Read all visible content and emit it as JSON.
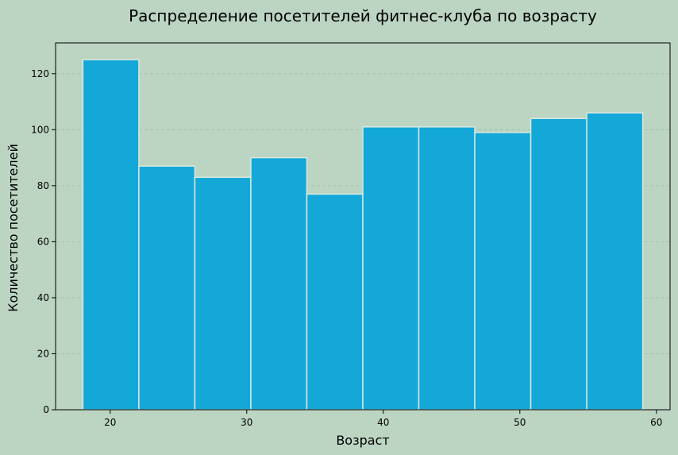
{
  "chart_data": {
    "type": "bar",
    "title": "Распределение посетителей фитнес-клуба по возрасту",
    "xlabel": "Возраст",
    "ylabel": "Количество посетителей",
    "bins": [
      [
        18.0,
        22.1
      ],
      [
        22.1,
        26.2
      ],
      [
        26.2,
        30.3
      ],
      [
        30.3,
        34.4
      ],
      [
        34.4,
        38.5
      ],
      [
        38.5,
        42.6
      ],
      [
        42.6,
        46.7
      ],
      [
        46.7,
        50.8
      ],
      [
        50.8,
        54.9
      ],
      [
        54.9,
        59.0
      ]
    ],
    "values": [
      125,
      87,
      83,
      90,
      77,
      101,
      101,
      99,
      104,
      106
    ],
    "xlim": [
      16,
      61
    ],
    "ylim": [
      0,
      131
    ],
    "xticks": [
      20,
      30,
      40,
      50,
      60
    ],
    "yticks": [
      0,
      20,
      40,
      60,
      80,
      100,
      120
    ],
    "grid": "horizontal, dashed",
    "colors": {
      "background": "#bcd5c3",
      "plot_background": "#bcd5c3",
      "bar_fill": "#13a8d8",
      "bar_edge": "#d9e8e0",
      "grid": "#9fbdaf",
      "axis": "#000000"
    }
  }
}
